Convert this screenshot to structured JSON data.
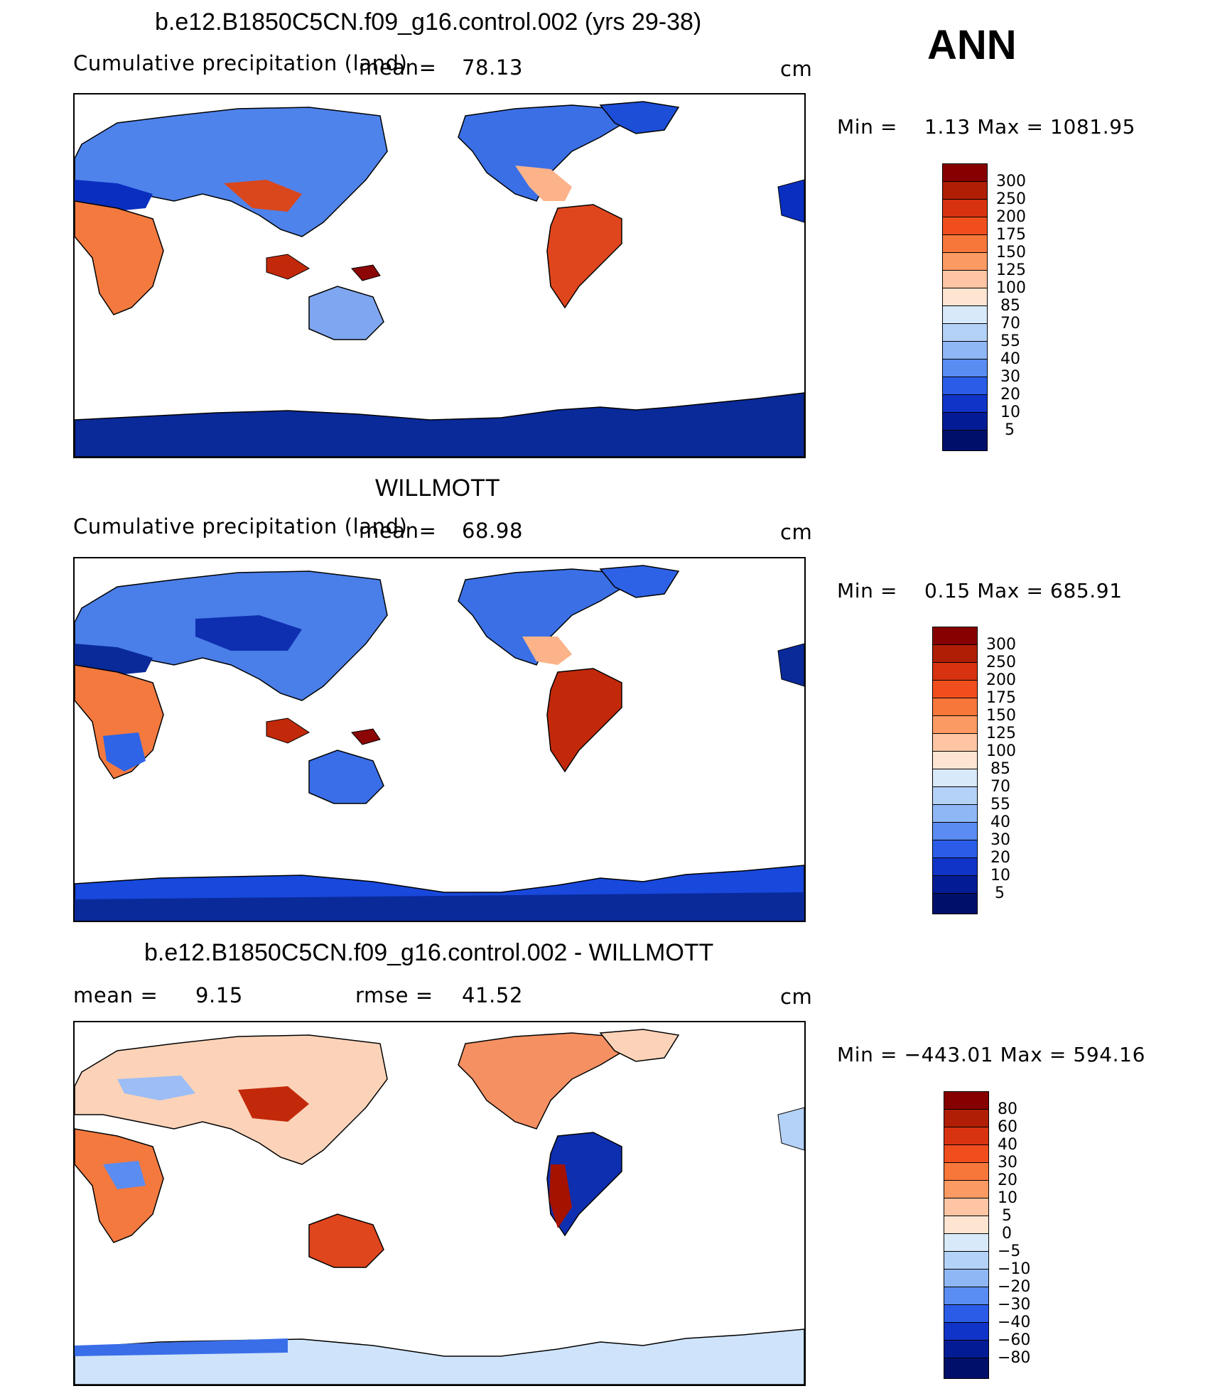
{
  "season": "ANN",
  "units": "cm",
  "panels": [
    {
      "title": "b.e12.B1850C5CN.f09_g16.control.002 (yrs 29-38)",
      "left_text": "Cumulative precipitation (land)",
      "mean_label": "mean=",
      "mean_value": "78.13",
      "minmax": "Min =    1.13 Max = 1081.95",
      "colorbar": [
        "300",
        "250",
        "200",
        "175",
        "150",
        "125",
        "100",
        "85",
        "70",
        "55",
        "40",
        "30",
        "20",
        "10",
        "5"
      ]
    },
    {
      "title": "WILLMOTT",
      "left_text": "Cumulative precipitation (land)",
      "mean_label": "mean=",
      "mean_value": "68.98",
      "minmax": "Min =    0.15 Max = 685.91",
      "colorbar": [
        "300",
        "250",
        "200",
        "175",
        "150",
        "125",
        "100",
        "85",
        "70",
        "55",
        "40",
        "30",
        "20",
        "10",
        "5"
      ]
    },
    {
      "title": "b.e12.B1850C5CN.f09_g16.control.002 - WILLMOTT",
      "mean_label": "mean =",
      "mean_value": "9.15",
      "rmse_label": "rmse =",
      "rmse_value": "41.52",
      "minmax": "Min = −443.01 Max = 594.16",
      "colorbar": [
        "80",
        "60",
        "40",
        "30",
        "20",
        "10",
        "5",
        "0",
        "−5",
        "−10",
        "−20",
        "−30",
        "−40",
        "−60",
        "−80"
      ]
    }
  ],
  "colors": {
    "seq": [
      "#870000",
      "#b01e05",
      "#d73310",
      "#f04e1d",
      "#f7763a",
      "#fb9a62",
      "#fdc5a3",
      "#fde5d2",
      "#d8e9fa",
      "#b4d2f7",
      "#8fb7f5",
      "#5a8cf2",
      "#2a5ce8",
      "#1034c8",
      "#031c96",
      "#00106a"
    ],
    "diff": [
      "#870000",
      "#b01e05",
      "#d73310",
      "#f04e1d",
      "#f7763a",
      "#fb9a62",
      "#fdc5a3",
      "#fde5d2",
      "#d8e9fa",
      "#b4d2f7",
      "#8fb7f5",
      "#5a8cf2",
      "#2a5ce8",
      "#1034c8",
      "#031c96",
      "#00106a"
    ]
  }
}
